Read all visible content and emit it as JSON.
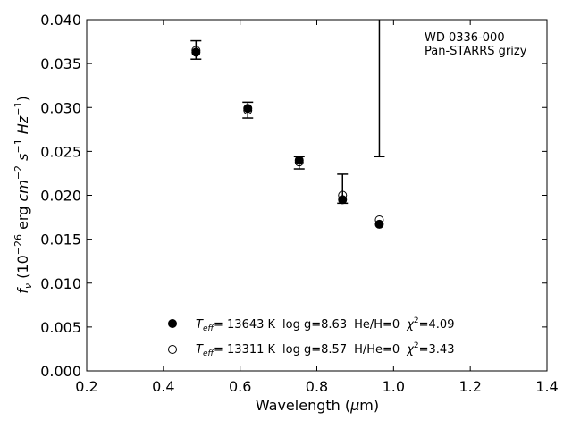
{
  "chart_data": {
    "type": "scatter",
    "title": "",
    "xlabel": "Wavelength (μm)",
    "ylabel": "f_ν (10^-26 erg cm^-2 s^-1 Hz^-1)",
    "xlim": [
      0.2,
      1.4
    ],
    "ylim": [
      0.0,
      0.04
    ],
    "x_ticks": [
      "0.2",
      "0.4",
      "0.6",
      "0.8",
      "1.0",
      "1.2",
      "1.4"
    ],
    "y_ticks": [
      "0.000",
      "0.005",
      "0.010",
      "0.015",
      "0.020",
      "0.025",
      "0.030",
      "0.035",
      "0.040"
    ],
    "grid": false,
    "annotation": [
      "WD 0336-000",
      "Pan-STARRS grizy"
    ],
    "observed": [
      {
        "x": 0.485,
        "y": 0.0365,
        "err_low": 0.0355,
        "err_high": 0.0376
      },
      {
        "x": 0.62,
        "y": 0.0297,
        "err_low": 0.0288,
        "err_high": 0.0306
      },
      {
        "x": 0.754,
        "y": 0.0237,
        "err_low": 0.023,
        "err_high": 0.0244
      },
      {
        "x": 0.867,
        "y": 0.02,
        "err_low": 0.0191,
        "err_high": 0.0224
      },
      {
        "x": 0.963,
        "y": 0.04,
        "err_low": 0.0244,
        "err_high": 0.04
      }
    ],
    "series": [
      {
        "name": "Teff= 13643 K  log g=8.63  He/H=0  χ2=4.09",
        "marker": "filled-circle",
        "x": [
          0.485,
          0.62,
          0.754,
          0.867,
          0.963
        ],
        "y": [
          0.0363,
          0.0299,
          0.024,
          0.0195,
          0.0167
        ]
      },
      {
        "name": "Teff= 13311 K  log g=8.57  H/He=0  χ2=3.43",
        "marker": "open-circle",
        "x": [
          0.485,
          0.62,
          0.754,
          0.867,
          0.963
        ],
        "y": [
          0.0365,
          0.0297,
          0.0238,
          0.02,
          0.0172
        ]
      }
    ],
    "legend": {
      "placement": "lower-center",
      "entries": [
        {
          "teff": "= 13643 K",
          "logg": "log g=8.63",
          "comp": "He/H=0",
          "chi": "=4.09"
        },
        {
          "teff": "= 13311 K",
          "logg": "log g=8.57",
          "comp": "H/He=0",
          "chi": "=3.43"
        }
      ]
    }
  }
}
